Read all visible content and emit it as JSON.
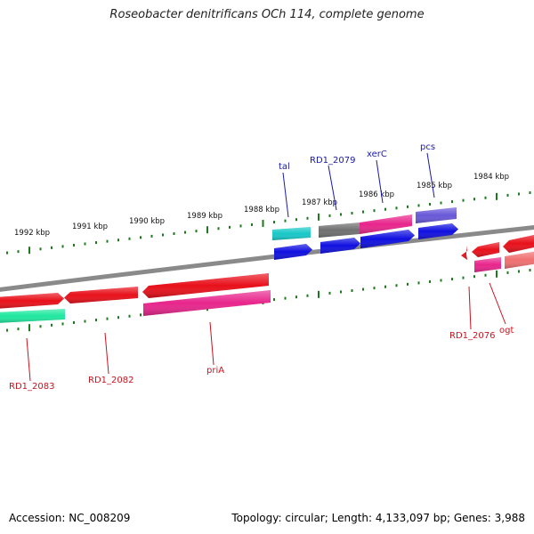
{
  "title": "Roseobacter denitrificans OCh 114, complete genome",
  "footer": {
    "accession": "Accession: NC_008209",
    "summary": "Topology: circular; Length: 4,133,097 bp; Genes: 3,988"
  },
  "colors": {
    "backbone": "#8a8a8a",
    "tick": "#1b7a1b",
    "label_blue": "#1a1aa8",
    "label_red": "#c8141e",
    "gene_red": "#e8101a",
    "gene_pink": "#e8258c",
    "gene_blue": "#1010e0",
    "gene_cyan": "#18c8c8",
    "gene_teal": "#20e8a0",
    "gene_gray": "#707070",
    "gene_purple": "#6858d8",
    "gene_salmon": "#f07070"
  },
  "kbp_labels": [
    "1992 kbp",
    "1991 kbp",
    "1990 kbp",
    "1989 kbp",
    "1988 kbp",
    "1987 kbp",
    "1986 kbp",
    "1985 kbp",
    "1984 kbp"
  ],
  "gene_labels_top": [
    "tal",
    "RD1_2079",
    "xerC",
    "pcs"
  ],
  "gene_labels_bottom": [
    "RD1_2083",
    "RD1_2082",
    "priA",
    "RD1_2076",
    "ogt"
  ]
}
